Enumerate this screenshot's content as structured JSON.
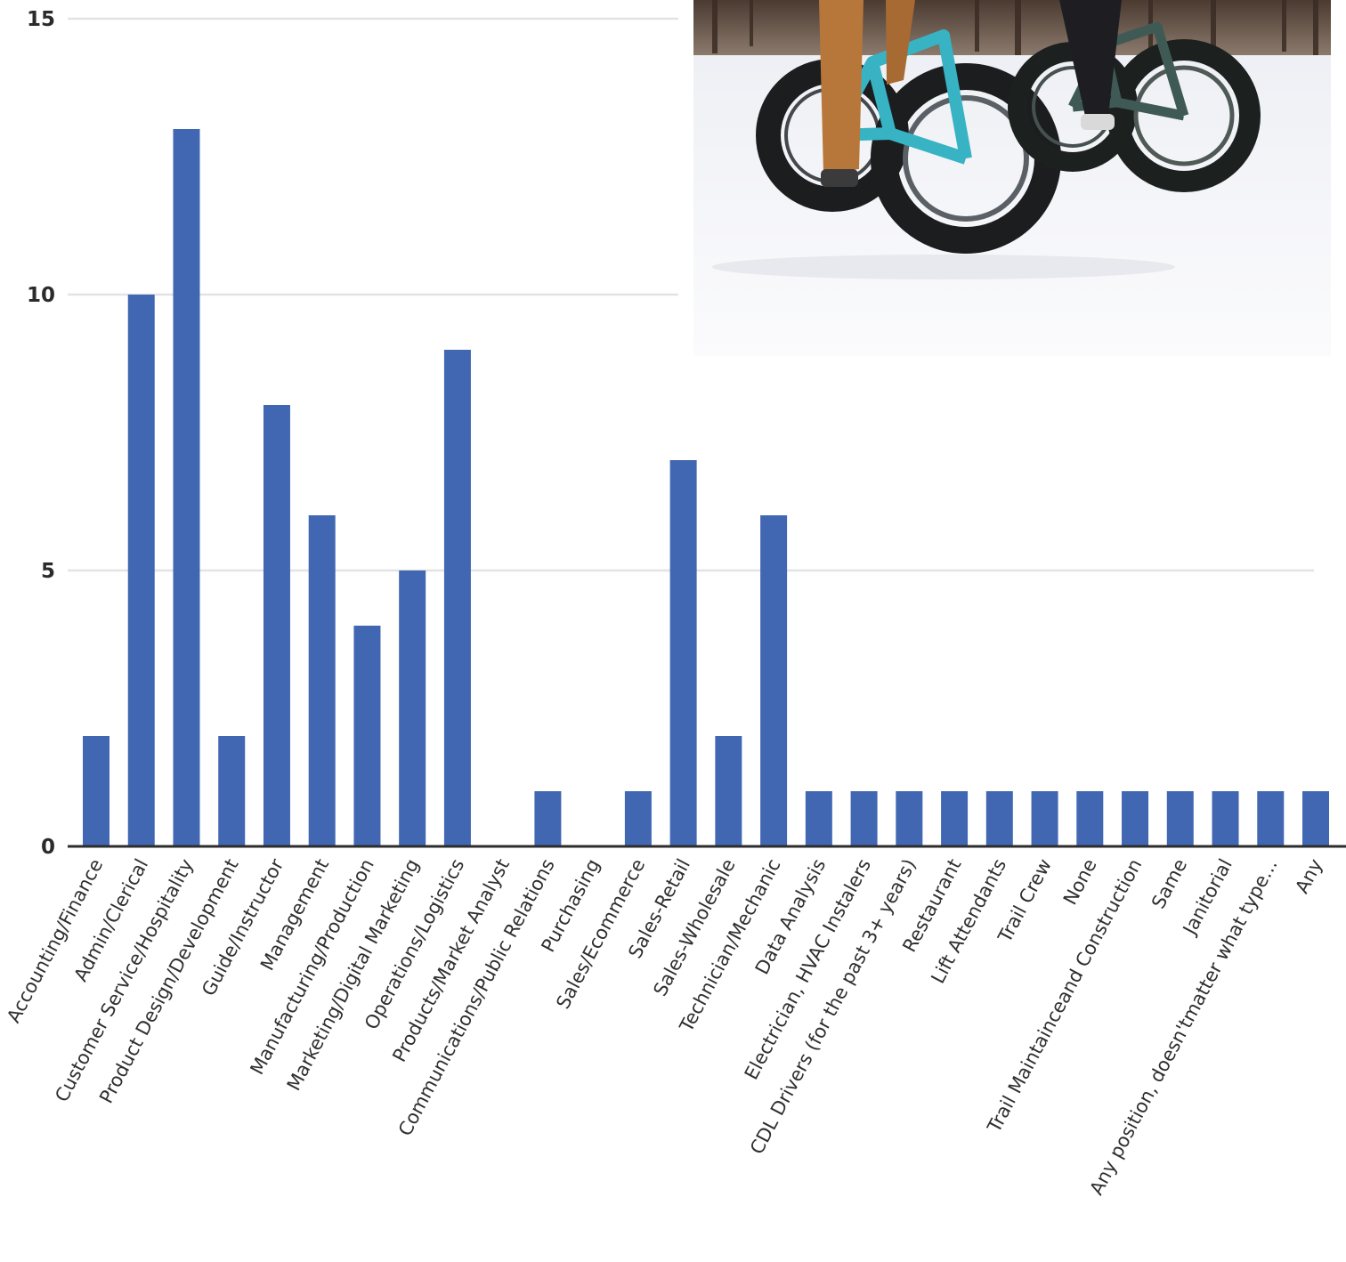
{
  "chart_data": {
    "type": "bar",
    "categories": [
      "Accounting/Finance",
      "Admin/Clerical",
      "Customer Service/Hospitality",
      "Product Design/Development",
      "Guide/Instructor",
      "Management",
      "Manufacturing/Production",
      "Marketing/Digital Marketing",
      "Operations/Logistics",
      "Products/Market Analyst",
      "Communications/Public Relations",
      "Purchasing",
      "Sales/Ecommerce",
      "Sales-Retail",
      "Sales-Wholesale",
      "Technician/Mechanic",
      "Data Analysis",
      "Electrician, HVAC Instalers",
      "CDL Drivers (for the past 3+ years)",
      "Restaurant",
      "Lift Attendants",
      "Trail Crew",
      "None",
      "Trail Maintainceand Construction",
      "Same",
      "Janitorial",
      "Any position, doesn'tmatter what type...",
      "Any"
    ],
    "values": [
      2,
      10,
      13,
      2,
      8,
      6,
      4,
      5,
      9,
      0,
      1,
      0,
      1,
      7,
      2,
      6,
      1,
      1,
      1,
      1,
      1,
      1,
      1,
      1,
      1,
      1,
      1,
      1
    ],
    "ylim": [
      0,
      15
    ],
    "yticks": [
      "0",
      "5",
      "10",
      "15"
    ],
    "grid": true,
    "colors": {
      "bar": "#4267b2",
      "grid": "#e3e3e3",
      "axis": "#2d2d2d"
    }
  },
  "photo": {
    "icon": "snow-fat-bike-photo"
  }
}
